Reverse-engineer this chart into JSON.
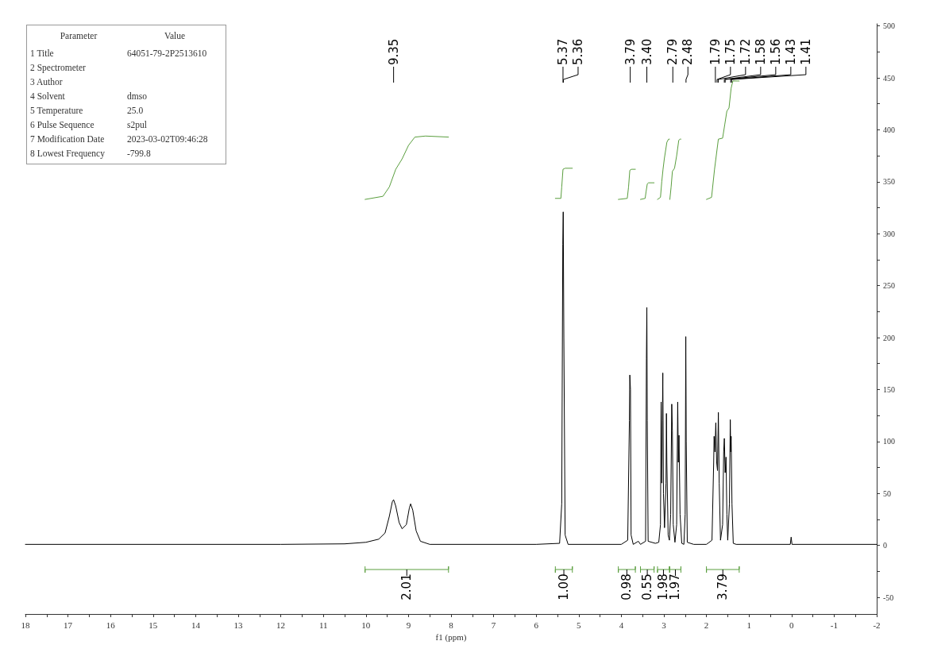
{
  "chart_data": {
    "type": "line",
    "xlabel": "f1 (ppm)",
    "xlim": [
      18,
      -2
    ],
    "ylim": [
      -66,
      502
    ],
    "xticks": [
      18,
      {
        "value": 17.5,
        "label": null
      },
      17,
      {
        "value": 16.5,
        "label": null
      },
      16,
      {
        "value": 15.5,
        "label": null
      },
      15,
      {
        "value": 14.5,
        "label": null
      },
      14,
      {
        "value": 13.5,
        "label": null
      },
      13,
      {
        "value": 12.5,
        "label": null
      },
      12,
      {
        "value": 11.5,
        "label": null
      },
      11,
      {
        "value": 10.5,
        "label": null
      },
      10,
      {
        "value": 9.5,
        "label": null
      },
      9,
      {
        "value": 8.5,
        "label": null
      },
      8,
      {
        "value": 7.5,
        "label": null
      },
      7,
      {
        "value": 6.5,
        "label": null
      },
      6,
      {
        "value": 5.5,
        "label": null
      },
      5,
      {
        "value": 4.5,
        "label": null
      },
      4,
      {
        "value": 3.5,
        "label": null
      },
      3,
      {
        "value": 2.5,
        "label": null
      },
      2,
      {
        "value": 1.5,
        "label": null
      },
      1,
      {
        "value": 0.5,
        "label": null
      },
      0,
      {
        "value": -0.5,
        "label": null
      },
      -1,
      {
        "value": -1.5,
        "label": null
      },
      -2
    ],
    "yticks": [
      -50,
      {
        "value": -25,
        "label": null
      },
      0,
      {
        "value": 25,
        "label": null
      },
      50,
      {
        "value": 75,
        "label": null
      },
      100,
      {
        "value": 125,
        "label": null
      },
      150,
      {
        "value": 175,
        "label": null
      },
      200,
      {
        "value": 225,
        "label": null
      },
      250,
      {
        "value": 275,
        "label": null
      },
      300,
      {
        "value": 325,
        "label": null
      },
      350,
      {
        "value": 375,
        "label": null
      },
      400,
      {
        "value": 425,
        "label": null
      },
      450,
      {
        "value": 475,
        "label": null
      },
      500
    ],
    "grid": false,
    "marker": "none",
    "line_style": "solid",
    "series": [
      {
        "color": "#000000",
        "x": [
          18,
          12,
          10.5,
          10,
          9.7,
          9.55,
          9.45,
          9.38,
          9.35,
          9.3,
          9.22,
          9.15,
          9.05,
          8.98,
          8.95,
          8.9,
          8.82,
          8.72,
          8.5,
          6,
          5.45,
          5.4,
          5.375,
          5.365,
          5.35,
          5.32,
          5.25,
          4,
          3.85,
          3.81,
          3.8,
          3.785,
          3.77,
          3.72,
          3.6,
          3.55,
          3.43,
          3.41,
          3.4,
          3.39,
          3.37,
          3.2,
          3.12,
          3.08,
          3.065,
          3.05,
          3.035,
          3.025,
          3.01,
          2.985,
          2.95,
          2.94,
          2.93,
          2.9,
          2.87,
          2.84,
          2.815,
          2.8,
          2.78,
          2.74,
          2.7,
          2.675,
          2.66,
          2.645,
          2.62,
          2.58,
          2.53,
          2.5,
          2.485,
          2.475,
          2.45,
          2.3,
          2,
          1.87,
          1.83,
          1.82,
          1.8,
          1.78,
          1.76,
          1.74,
          1.72,
          1.7,
          1.67,
          1.62,
          1.595,
          1.58,
          1.56,
          1.54,
          1.52,
          1.5,
          1.46,
          1.44,
          1.43,
          1.42,
          1.4,
          1.37,
          1.3,
          0.03,
          0.01,
          -0.01,
          -2
        ],
        "values": [
          1,
          1,
          1.5,
          3,
          6,
          12,
          28,
          42,
          44,
          38,
          22,
          16,
          20,
          36,
          40,
          34,
          14,
          4,
          1,
          1,
          2,
          40,
          290,
          321,
          200,
          10,
          1,
          1,
          5,
          120,
          164,
          150,
          10,
          1,
          4,
          1,
          4,
          180,
          229,
          120,
          4,
          2,
          3,
          20,
          138,
          60,
          120,
          166,
          50,
          17,
          60,
          127,
          80,
          10,
          5,
          30,
          136,
          110,
          20,
          3,
          20,
          138,
          80,
          106,
          30,
          2,
          1,
          30,
          201,
          100,
          3,
          1,
          1,
          5,
          80,
          105,
          90,
          118,
          80,
          72,
          128,
          60,
          5,
          20,
          90,
          103,
          70,
          85,
          30,
          5,
          40,
          121,
          90,
          105,
          40,
          2,
          1,
          1,
          8,
          1,
          1
        ]
      },
      {
        "color": "#5a9e3e",
        "x": [
          10.02,
          9.6,
          9.45,
          9.3,
          9.15,
          9,
          8.85,
          8.6,
          8.06
        ],
        "values": [
          333,
          336,
          345,
          362,
          372,
          385,
          393,
          394,
          393
        ]
      },
      {
        "color": "#5a9e3e",
        "x": [
          5.55,
          5.42,
          5.4,
          5.37,
          5.32,
          5.15
        ],
        "values": [
          334,
          334,
          345,
          362,
          363,
          363
        ]
      },
      {
        "color": "#5a9e3e",
        "x": [
          4.07,
          3.86,
          3.83,
          3.8,
          3.76,
          3.67
        ],
        "values": [
          333,
          334,
          345,
          361,
          362,
          362
        ]
      },
      {
        "color": "#5a9e3e",
        "x": [
          3.55,
          3.44,
          3.42,
          3.39,
          3.36,
          3.23
        ],
        "values": [
          333,
          334,
          340,
          348,
          349,
          349
        ]
      },
      {
        "color": "#5a9e3e",
        "x": [
          3.15,
          3.08,
          3.05,
          3.02,
          2.99,
          2.93,
          2.89,
          2.87
        ],
        "values": [
          333,
          335,
          350,
          362,
          372,
          388,
          391,
          391
        ]
      },
      {
        "color": "#5a9e3e",
        "x": [
          2.86,
          2.83,
          2.8,
          2.75,
          2.7,
          2.65,
          2.62,
          2.6
        ],
        "values": [
          333,
          345,
          360,
          363,
          375,
          390,
          391,
          391
        ]
      },
      {
        "color": "#5a9e3e",
        "x": [
          2,
          1.88,
          1.81,
          1.72,
          1.62,
          1.57,
          1.52,
          1.47,
          1.42,
          1.38,
          1.23
        ],
        "values": [
          333,
          335,
          362,
          391,
          392,
          405,
          418,
          421,
          440,
          447,
          447
        ]
      }
    ],
    "annotations": [
      "Parameter\tValue",
      "1 Title\t64051-79-2P2513610",
      "2 Spectrometer",
      "3 Author",
      "4 Solvent\tdmso",
      "5 Temperature\t25.0",
      "6 Pulse Sequence\ts2pul",
      "7 Modification Date\t2023-03-02T09:46:28",
      "8 Lowest Frequency\t-799.8",
      {
        "text": "9.35",
        "x": 9.35
      },
      {
        "text": "5.37",
        "x": 5.37
      },
      {
        "text": "5.36",
        "x": 5.36
      },
      {
        "text": "3.79",
        "x": 3.79
      },
      {
        "text": "3.40",
        "x": 3.4
      },
      {
        "text": "2.79",
        "x": 2.79
      },
      {
        "text": "2.48",
        "x": 2.48
      },
      {
        "text": "1.79",
        "x": 1.79
      },
      {
        "text": "1.75",
        "x": 1.75
      },
      {
        "text": "1.72",
        "x": 1.72
      },
      {
        "text": "1.58",
        "x": 1.58
      },
      {
        "text": "1.56",
        "x": 1.56
      },
      {
        "text": "1.43",
        "x": 1.43
      },
      {
        "text": "1.41",
        "x": 1.41
      },
      "2.01",
      "1.00",
      "0.98",
      "0.55",
      "1.98",
      "1.97",
      "3.79"
    ]
  }
}
